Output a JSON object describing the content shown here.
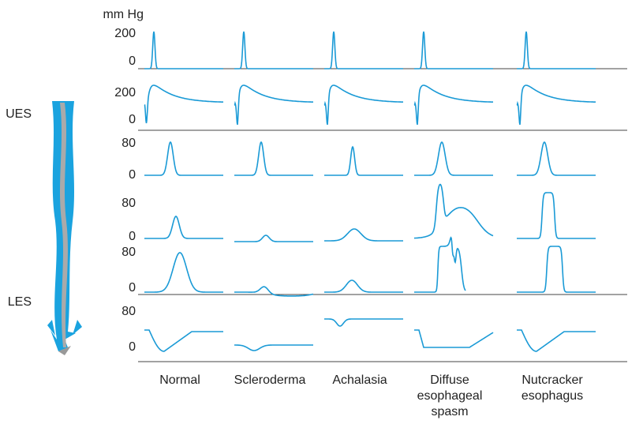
{
  "units": "mm Hg",
  "rows": [
    {
      "ticks": [
        "200",
        "0"
      ]
    },
    {
      "ticks": [
        "200",
        "0"
      ]
    },
    {
      "ticks": [
        "80",
        "0"
      ]
    },
    {
      "ticks": [
        "80",
        "0"
      ]
    },
    {
      "ticks": [
        "80",
        "0"
      ]
    },
    {
      "ticks": [
        "80",
        "0"
      ]
    }
  ],
  "side_labels": {
    "upper": "UES",
    "lower": "LES"
  },
  "columns": [
    {
      "label": [
        "Normal"
      ]
    },
    {
      "label": [
        "Scleroderma"
      ]
    },
    {
      "label": [
        "Achalasia"
      ]
    },
    {
      "label": [
        "Diffuse",
        "esophageal",
        "spasm"
      ]
    },
    {
      "label": [
        "Nutcracker",
        "esophagus"
      ]
    }
  ]
}
